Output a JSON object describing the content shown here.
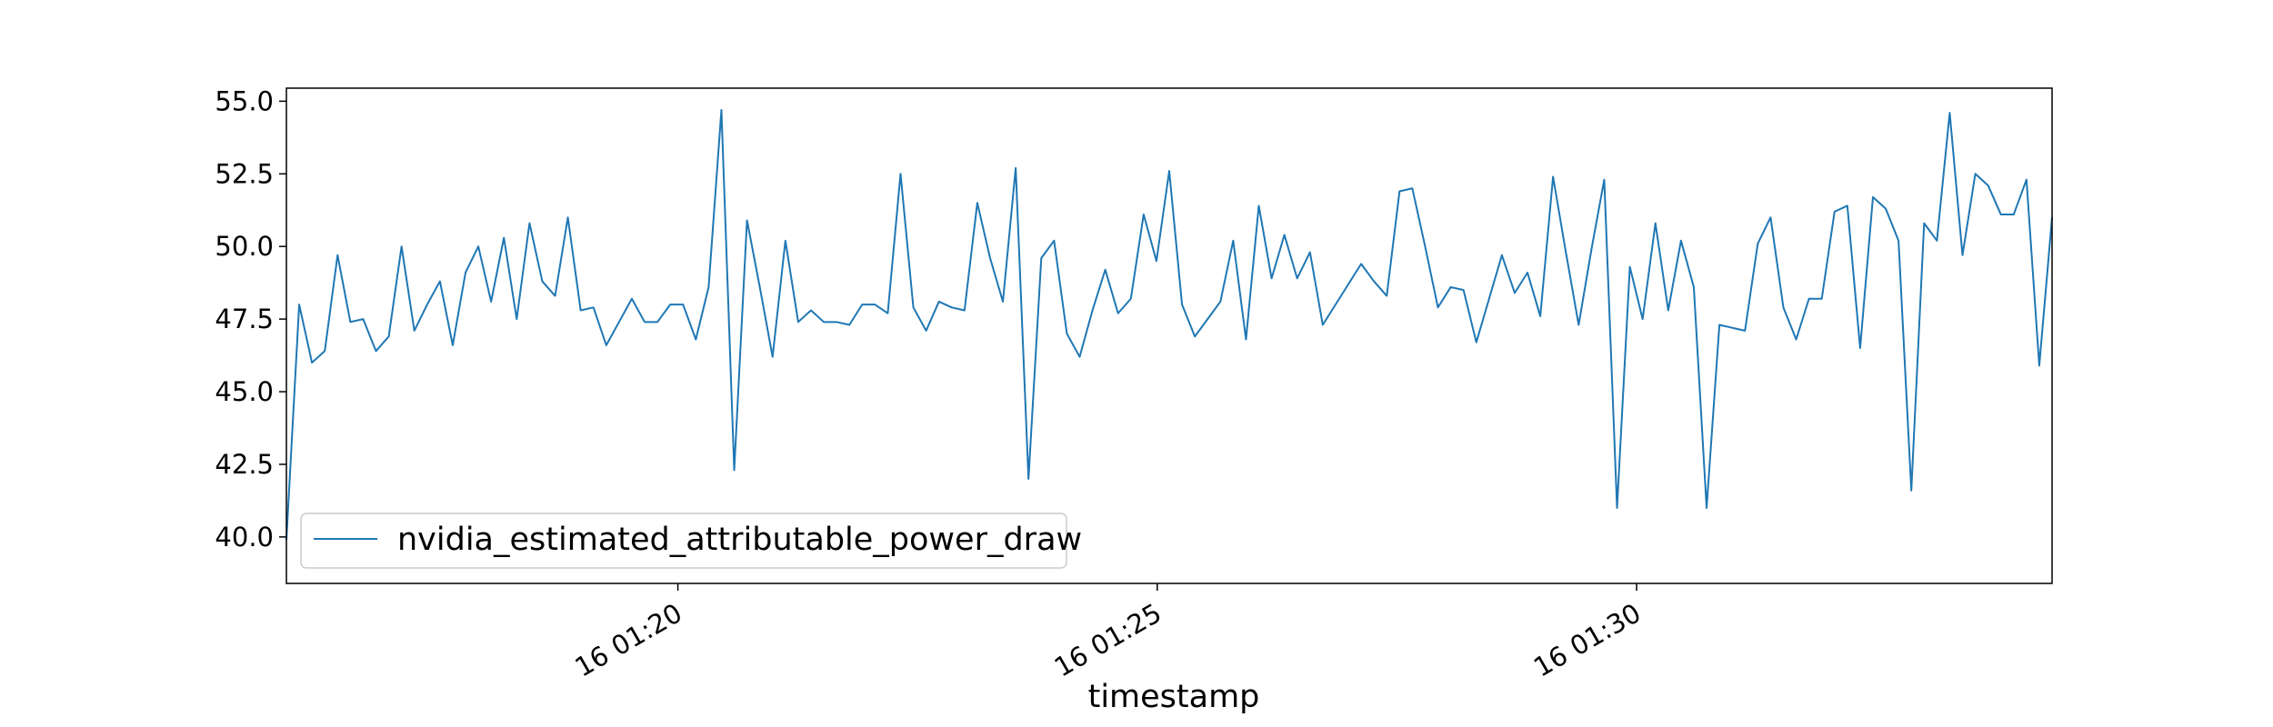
{
  "chart_data": {
    "type": "line",
    "title": "",
    "xlabel": "timestamp",
    "ylabel": "",
    "x_unit": "minutes",
    "xlim": [
      "2024-01-16 01:15:55",
      "2024-01-16 01:34:20"
    ],
    "ylim": [
      38.4,
      55.45
    ],
    "grid": false,
    "legend_position": "lower-left",
    "line_color": "#1f77b4",
    "x_ticks": [
      {
        "value": "2024-01-16 01:20:00",
        "label": "16 01:20"
      },
      {
        "value": "2024-01-16 01:25:00",
        "label": "16 01:25"
      },
      {
        "value": "2024-01-16 01:30:00",
        "label": "16 01:30"
      }
    ],
    "y_ticks": [
      {
        "value": 40.0,
        "label": "40.0"
      },
      {
        "value": 42.5,
        "label": "42.5"
      },
      {
        "value": 45.0,
        "label": "45.0"
      },
      {
        "value": 47.5,
        "label": "47.5"
      },
      {
        "value": 50.0,
        "label": "50.0"
      },
      {
        "value": 52.5,
        "label": "52.5"
      },
      {
        "value": 55.0,
        "label": "55.0"
      }
    ],
    "series": [
      {
        "name": "nvidia_estimated_attributable_power_draw",
        "values": [
          39.9,
          48.0,
          46.0,
          46.4,
          49.7,
          47.4,
          47.5,
          46.4,
          46.9,
          50.0,
          47.1,
          48.0,
          48.8,
          46.6,
          49.1,
          50.0,
          48.1,
          50.3,
          47.5,
          50.8,
          48.8,
          48.3,
          51.0,
          47.8,
          47.9,
          46.6,
          47.4,
          48.2,
          47.4,
          47.4,
          48.0,
          48.0,
          46.8,
          48.6,
          54.7,
          42.3,
          50.9,
          48.6,
          46.2,
          50.2,
          47.4,
          47.8,
          47.4,
          47.4,
          47.3,
          48.0,
          48.0,
          47.7,
          52.5,
          47.9,
          47.1,
          48.1,
          47.9,
          47.8,
          51.5,
          49.6,
          48.1,
          52.7,
          42.0,
          49.6,
          50.2,
          47.0,
          46.2,
          47.8,
          49.2,
          47.7,
          48.2,
          51.1,
          49.5,
          52.6,
          48.0,
          46.9,
          47.5,
          48.1,
          50.2,
          46.8,
          51.4,
          48.9,
          50.4,
          48.9,
          49.8,
          47.3,
          48.0,
          48.7,
          49.4,
          48.8,
          48.3,
          51.9,
          52.0,
          50.0,
          47.9,
          48.6,
          48.5,
          46.7,
          48.2,
          49.7,
          48.4,
          49.1,
          47.6,
          52.4,
          49.8,
          47.3,
          49.9,
          52.3,
          41.0,
          49.3,
          47.5,
          50.8,
          47.8,
          50.2,
          48.6,
          41.0,
          47.3,
          47.2,
          47.1,
          50.1,
          51.0,
          47.9,
          46.8,
          48.2,
          48.2,
          51.2,
          51.4,
          46.5,
          51.7,
          51.3,
          50.2,
          41.6,
          50.8,
          50.2,
          54.6,
          49.7,
          52.5,
          52.1,
          51.1,
          51.1,
          52.3,
          45.9,
          51.0
        ]
      }
    ]
  }
}
